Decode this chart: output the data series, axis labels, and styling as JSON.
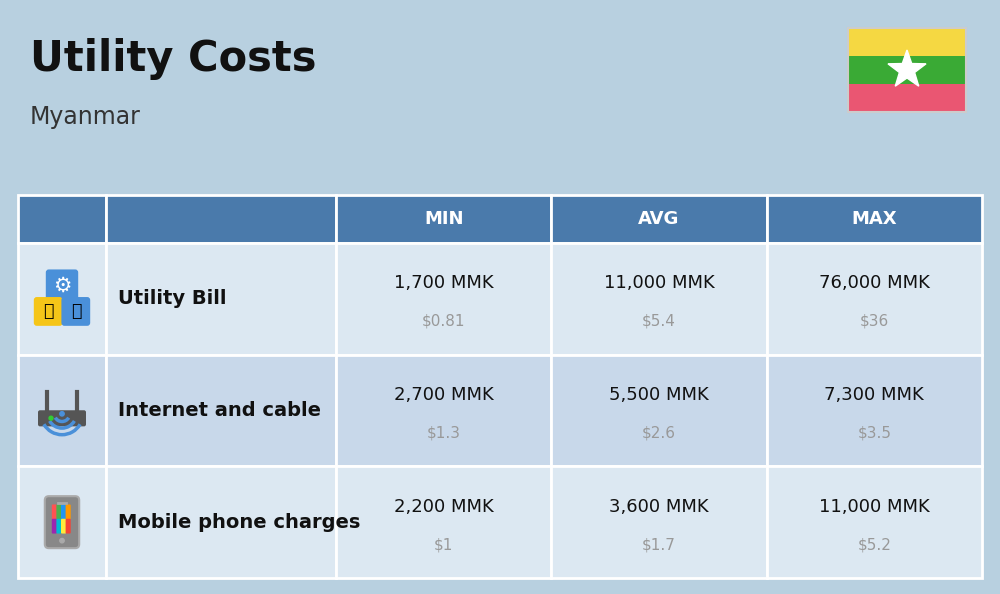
{
  "title": "Utility Costs",
  "subtitle": "Myanmar",
  "background_color": "#b8d0e0",
  "header_bg_color": "#4a7aab",
  "header_text_color": "#ffffff",
  "row_bg_color_1": "#dce8f2",
  "row_bg_color_2": "#c8d8ea",
  "table_border_color": "#ffffff",
  "col_headers": [
    "MIN",
    "AVG",
    "MAX"
  ],
  "rows": [
    {
      "label": "Utility Bill",
      "min_mmk": "1,700 MMK",
      "min_usd": "$0.81",
      "avg_mmk": "11,000 MMK",
      "avg_usd": "$5.4",
      "max_mmk": "76,000 MMK",
      "max_usd": "$36"
    },
    {
      "label": "Internet and cable",
      "min_mmk": "2,700 MMK",
      "min_usd": "$1.3",
      "avg_mmk": "5,500 MMK",
      "avg_usd": "$2.6",
      "max_mmk": "7,300 MMK",
      "max_usd": "$3.5"
    },
    {
      "label": "Mobile phone charges",
      "min_mmk": "2,200 MMK",
      "min_usd": "$1",
      "avg_mmk": "3,600 MMK",
      "avg_usd": "$1.7",
      "max_mmk": "11,000 MMK",
      "max_usd": "$5.2"
    }
  ],
  "mmk_fontsize": 13,
  "usd_fontsize": 11,
  "label_fontsize": 14,
  "header_fontsize": 13,
  "title_fontsize": 30,
  "subtitle_fontsize": 17,
  "usd_color": "#999999",
  "label_color": "#111111",
  "mmk_color": "#111111",
  "flag_yellow": "#F5D842",
  "flag_green": "#3AAA35",
  "flag_red": "#EA5672"
}
